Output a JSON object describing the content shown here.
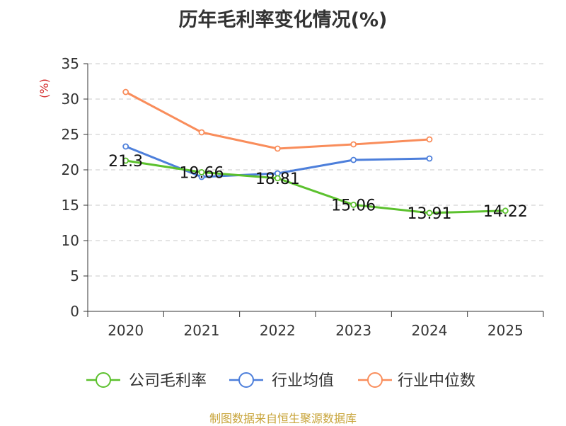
{
  "chart_data": {
    "type": "line",
    "title": "历年毛利率变化情况(%)",
    "ylabel": "(%)",
    "xlabel": "",
    "categories": [
      "2020",
      "2021",
      "2022",
      "2023",
      "2024",
      "2025"
    ],
    "ylim": [
      0,
      35
    ],
    "yticks": [
      0,
      5,
      10,
      15,
      20,
      25,
      30,
      35
    ],
    "grid": true,
    "legend_position": "bottom",
    "series": [
      {
        "name": "公司毛利率",
        "color": "#5cc12e",
        "values": [
          21.3,
          19.66,
          18.81,
          15.06,
          13.91,
          14.22
        ],
        "labels": [
          "21.3",
          "19.66",
          "18.81",
          "15.06",
          "13.91",
          "14.22"
        ],
        "show_labels": true
      },
      {
        "name": "行业均值",
        "color": "#4d7fdb",
        "values": [
          23.3,
          19.0,
          19.5,
          21.4,
          21.6,
          null
        ],
        "show_labels": false
      },
      {
        "name": "行业中位数",
        "color": "#f98d5b",
        "values": [
          31.0,
          25.3,
          23.0,
          23.6,
          24.3,
          null
        ],
        "show_labels": false
      }
    ]
  },
  "source": "制图数据来自恒生聚源数据库"
}
